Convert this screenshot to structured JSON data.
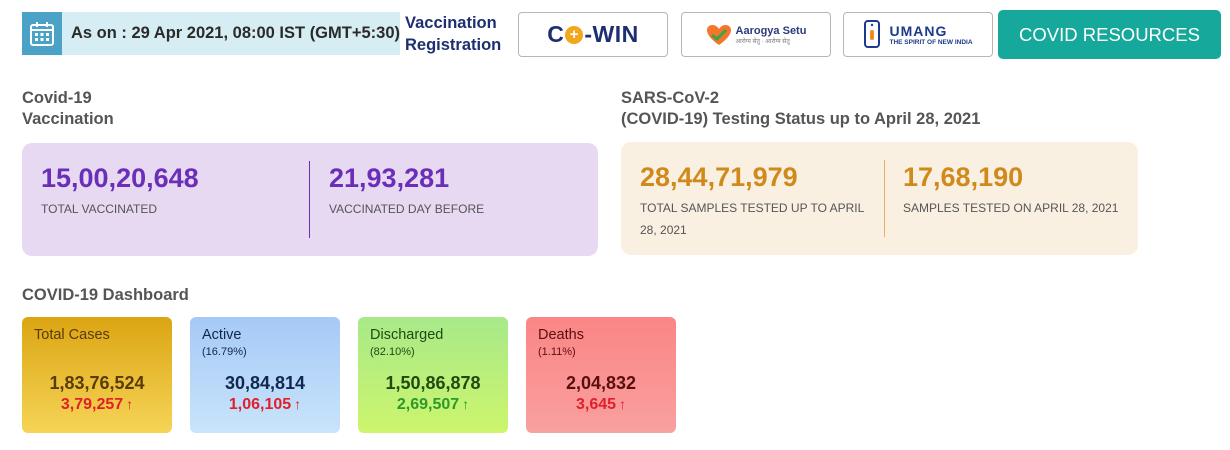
{
  "header": {
    "date_text": "As on : 29 Apr 2021, 08:00 IST (GMT+5:30)",
    "vaccination_line1": "Vaccination",
    "vaccination_line2": "Registration",
    "cowin_prefix": "C",
    "cowin_suffix": "-WIN",
    "aarogya_name": "Aarogya Setu",
    "aarogya_sub": "आरोग्य सेतु · आरोग्य सेतु",
    "umang_name": "UMANG",
    "umang_sub": "THE SPIRIT OF NEW INDIA",
    "covid_resources": "COVID RESOURCES",
    "icons": {
      "calendar": "calendar-icon",
      "aarogya": "heart-icon",
      "umang": "phone-hand-icon"
    }
  },
  "vaccination": {
    "title_line1": "Covid-19",
    "title_line2": "Vaccination",
    "total_value": "15,00,20,648",
    "total_label": "TOTAL VACCINATED",
    "day_value": "21,93,281",
    "day_label": "VACCINATED DAY BEFORE"
  },
  "testing": {
    "title_line1": "SARS-CoV-2",
    "title_line2": "(COVID-19) Testing Status up to April 28, 2021",
    "total_value": "28,44,71,979",
    "total_label_line1": "TOTAL SAMPLES TESTED UP TO APRIL",
    "total_label_line2": "28, 2021",
    "day_value": "17,68,190",
    "day_label": "SAMPLES TESTED ON APRIL 28, 2021"
  },
  "dashboard": {
    "title": "COVID-19 Dashboard",
    "cards": [
      {
        "title": "Total Cases",
        "pct": "",
        "value": "1,83,76,524",
        "delta": "3,79,257",
        "text_color": "#5a3b08",
        "delta_color": "#e0202a"
      },
      {
        "title": "Active",
        "pct": "(16.79%)",
        "value": "30,84,814",
        "delta": "1,06,105",
        "text_color": "#10284d",
        "delta_color": "#e0202a"
      },
      {
        "title": "Discharged",
        "pct": "(82.10%)",
        "value": "1,50,86,878",
        "delta": "2,69,507",
        "text_color": "#1f4a10",
        "delta_color": "#2b9a2b"
      },
      {
        "title": "Deaths",
        "pct": "(1.11%)",
        "value": "2,04,832",
        "delta": "3,645",
        "text_color": "#5a0e0e",
        "delta_color": "#e0202a"
      }
    ],
    "arrow_up": "↑"
  },
  "colors": {
    "teal": "#16a89b",
    "purple": "#6a2eb8",
    "orange": "#d08a1c",
    "navy": "#1d2f6f"
  }
}
